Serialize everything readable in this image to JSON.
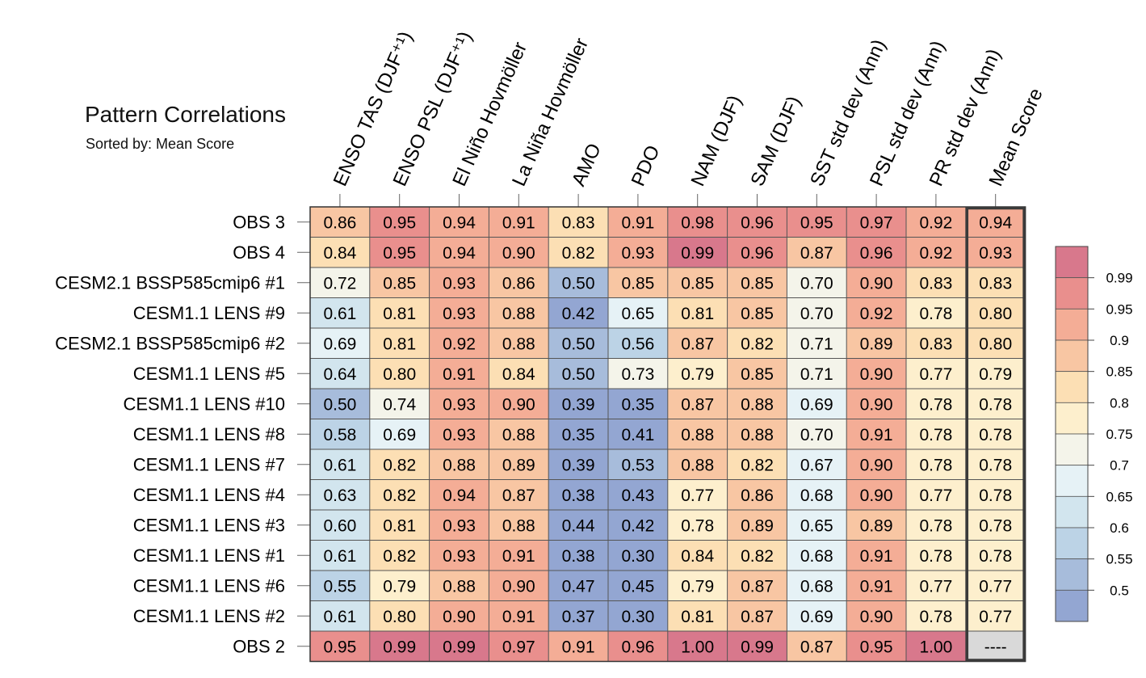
{
  "chart_data": {
    "type": "heatmap",
    "title": "Pattern Correlations",
    "subtitle": "Sorted by: Mean Score",
    "columns": [
      "ENSO TAS (DJF⁺¹)",
      "ENSO PSL (DJF⁺¹)",
      "El Niño Hovmöller",
      "La Niña Hovmöller",
      "AMO",
      "PDO",
      "NAM (DJF)",
      "SAM (DJF)",
      "SST std dev (Ann)",
      "PSL std dev (Ann)",
      "PR std dev (Ann)",
      "Mean Score"
    ],
    "rows": [
      "OBS 3",
      "OBS 4",
      "CESM2.1 BSSP585cmip6 #1",
      "CESM1.1 LENS #9",
      "CESM2.1 BSSP585cmip6 #2",
      "CESM1.1 LENS #5",
      "CESM1.1 LENS #10",
      "CESM1.1 LENS #8",
      "CESM1.1 LENS #7",
      "CESM1.1 LENS #4",
      "CESM1.1 LENS #3",
      "CESM1.1 LENS #1",
      "CESM1.1 LENS #6",
      "CESM1.1 LENS #2",
      "OBS 2"
    ],
    "values": [
      [
        "0.86",
        "0.95",
        "0.94",
        "0.91",
        "0.83",
        "0.91",
        "0.98",
        "0.96",
        "0.95",
        "0.97",
        "0.92",
        "0.94"
      ],
      [
        "0.84",
        "0.95",
        "0.94",
        "0.90",
        "0.82",
        "0.93",
        "0.99",
        "0.96",
        "0.87",
        "0.96",
        "0.92",
        "0.93"
      ],
      [
        "0.72",
        "0.85",
        "0.93",
        "0.86",
        "0.50",
        "0.85",
        "0.85",
        "0.85",
        "0.70",
        "0.90",
        "0.83",
        "0.83"
      ],
      [
        "0.61",
        "0.81",
        "0.93",
        "0.88",
        "0.42",
        "0.65",
        "0.81",
        "0.85",
        "0.70",
        "0.92",
        "0.78",
        "0.80"
      ],
      [
        "0.69",
        "0.81",
        "0.92",
        "0.88",
        "0.50",
        "0.56",
        "0.87",
        "0.82",
        "0.71",
        "0.89",
        "0.83",
        "0.80"
      ],
      [
        "0.64",
        "0.80",
        "0.91",
        "0.84",
        "0.50",
        "0.73",
        "0.79",
        "0.85",
        "0.71",
        "0.90",
        "0.77",
        "0.79"
      ],
      [
        "0.50",
        "0.74",
        "0.93",
        "0.90",
        "0.39",
        "0.35",
        "0.87",
        "0.88",
        "0.69",
        "0.90",
        "0.78",
        "0.78"
      ],
      [
        "0.58",
        "0.69",
        "0.93",
        "0.88",
        "0.35",
        "0.41",
        "0.88",
        "0.88",
        "0.70",
        "0.91",
        "0.78",
        "0.78"
      ],
      [
        "0.61",
        "0.82",
        "0.88",
        "0.89",
        "0.39",
        "0.53",
        "0.88",
        "0.82",
        "0.67",
        "0.90",
        "0.78",
        "0.78"
      ],
      [
        "0.63",
        "0.82",
        "0.94",
        "0.87",
        "0.38",
        "0.43",
        "0.77",
        "0.86",
        "0.68",
        "0.90",
        "0.77",
        "0.78"
      ],
      [
        "0.60",
        "0.81",
        "0.93",
        "0.88",
        "0.44",
        "0.42",
        "0.78",
        "0.89",
        "0.65",
        "0.89",
        "0.78",
        "0.78"
      ],
      [
        "0.61",
        "0.82",
        "0.93",
        "0.91",
        "0.38",
        "0.30",
        "0.84",
        "0.82",
        "0.68",
        "0.91",
        "0.78",
        "0.78"
      ],
      [
        "0.55",
        "0.79",
        "0.88",
        "0.90",
        "0.47",
        "0.45",
        "0.79",
        "0.87",
        "0.68",
        "0.91",
        "0.77",
        "0.77"
      ],
      [
        "0.61",
        "0.80",
        "0.90",
        "0.91",
        "0.37",
        "0.30",
        "0.81",
        "0.87",
        "0.69",
        "0.90",
        "0.78",
        "0.77"
      ],
      [
        "0.95",
        "0.99",
        "0.99",
        "0.97",
        "0.91",
        "0.96",
        "1.00",
        "0.99",
        "0.87",
        "0.95",
        "1.00",
        "----"
      ]
    ],
    "highlight_column": "Mean Score",
    "colorbar": {
      "levels": [
        "0.5",
        "0.55",
        "0.6",
        "0.65",
        "0.7",
        "0.75",
        "0.8",
        "0.85",
        "0.9",
        "0.95",
        "0.99"
      ],
      "colors": [
        "#93a6d2",
        "#a7bcdb",
        "#bcd3e6",
        "#d2e5ee",
        "#e6f2f6",
        "#f4f4ea",
        "#fdefcd",
        "#fcdfb4",
        "#f8c6a3",
        "#f4ad96",
        "#e98f8d",
        "#d8788c"
      ]
    },
    "missing_color": "#d9d9d9"
  }
}
